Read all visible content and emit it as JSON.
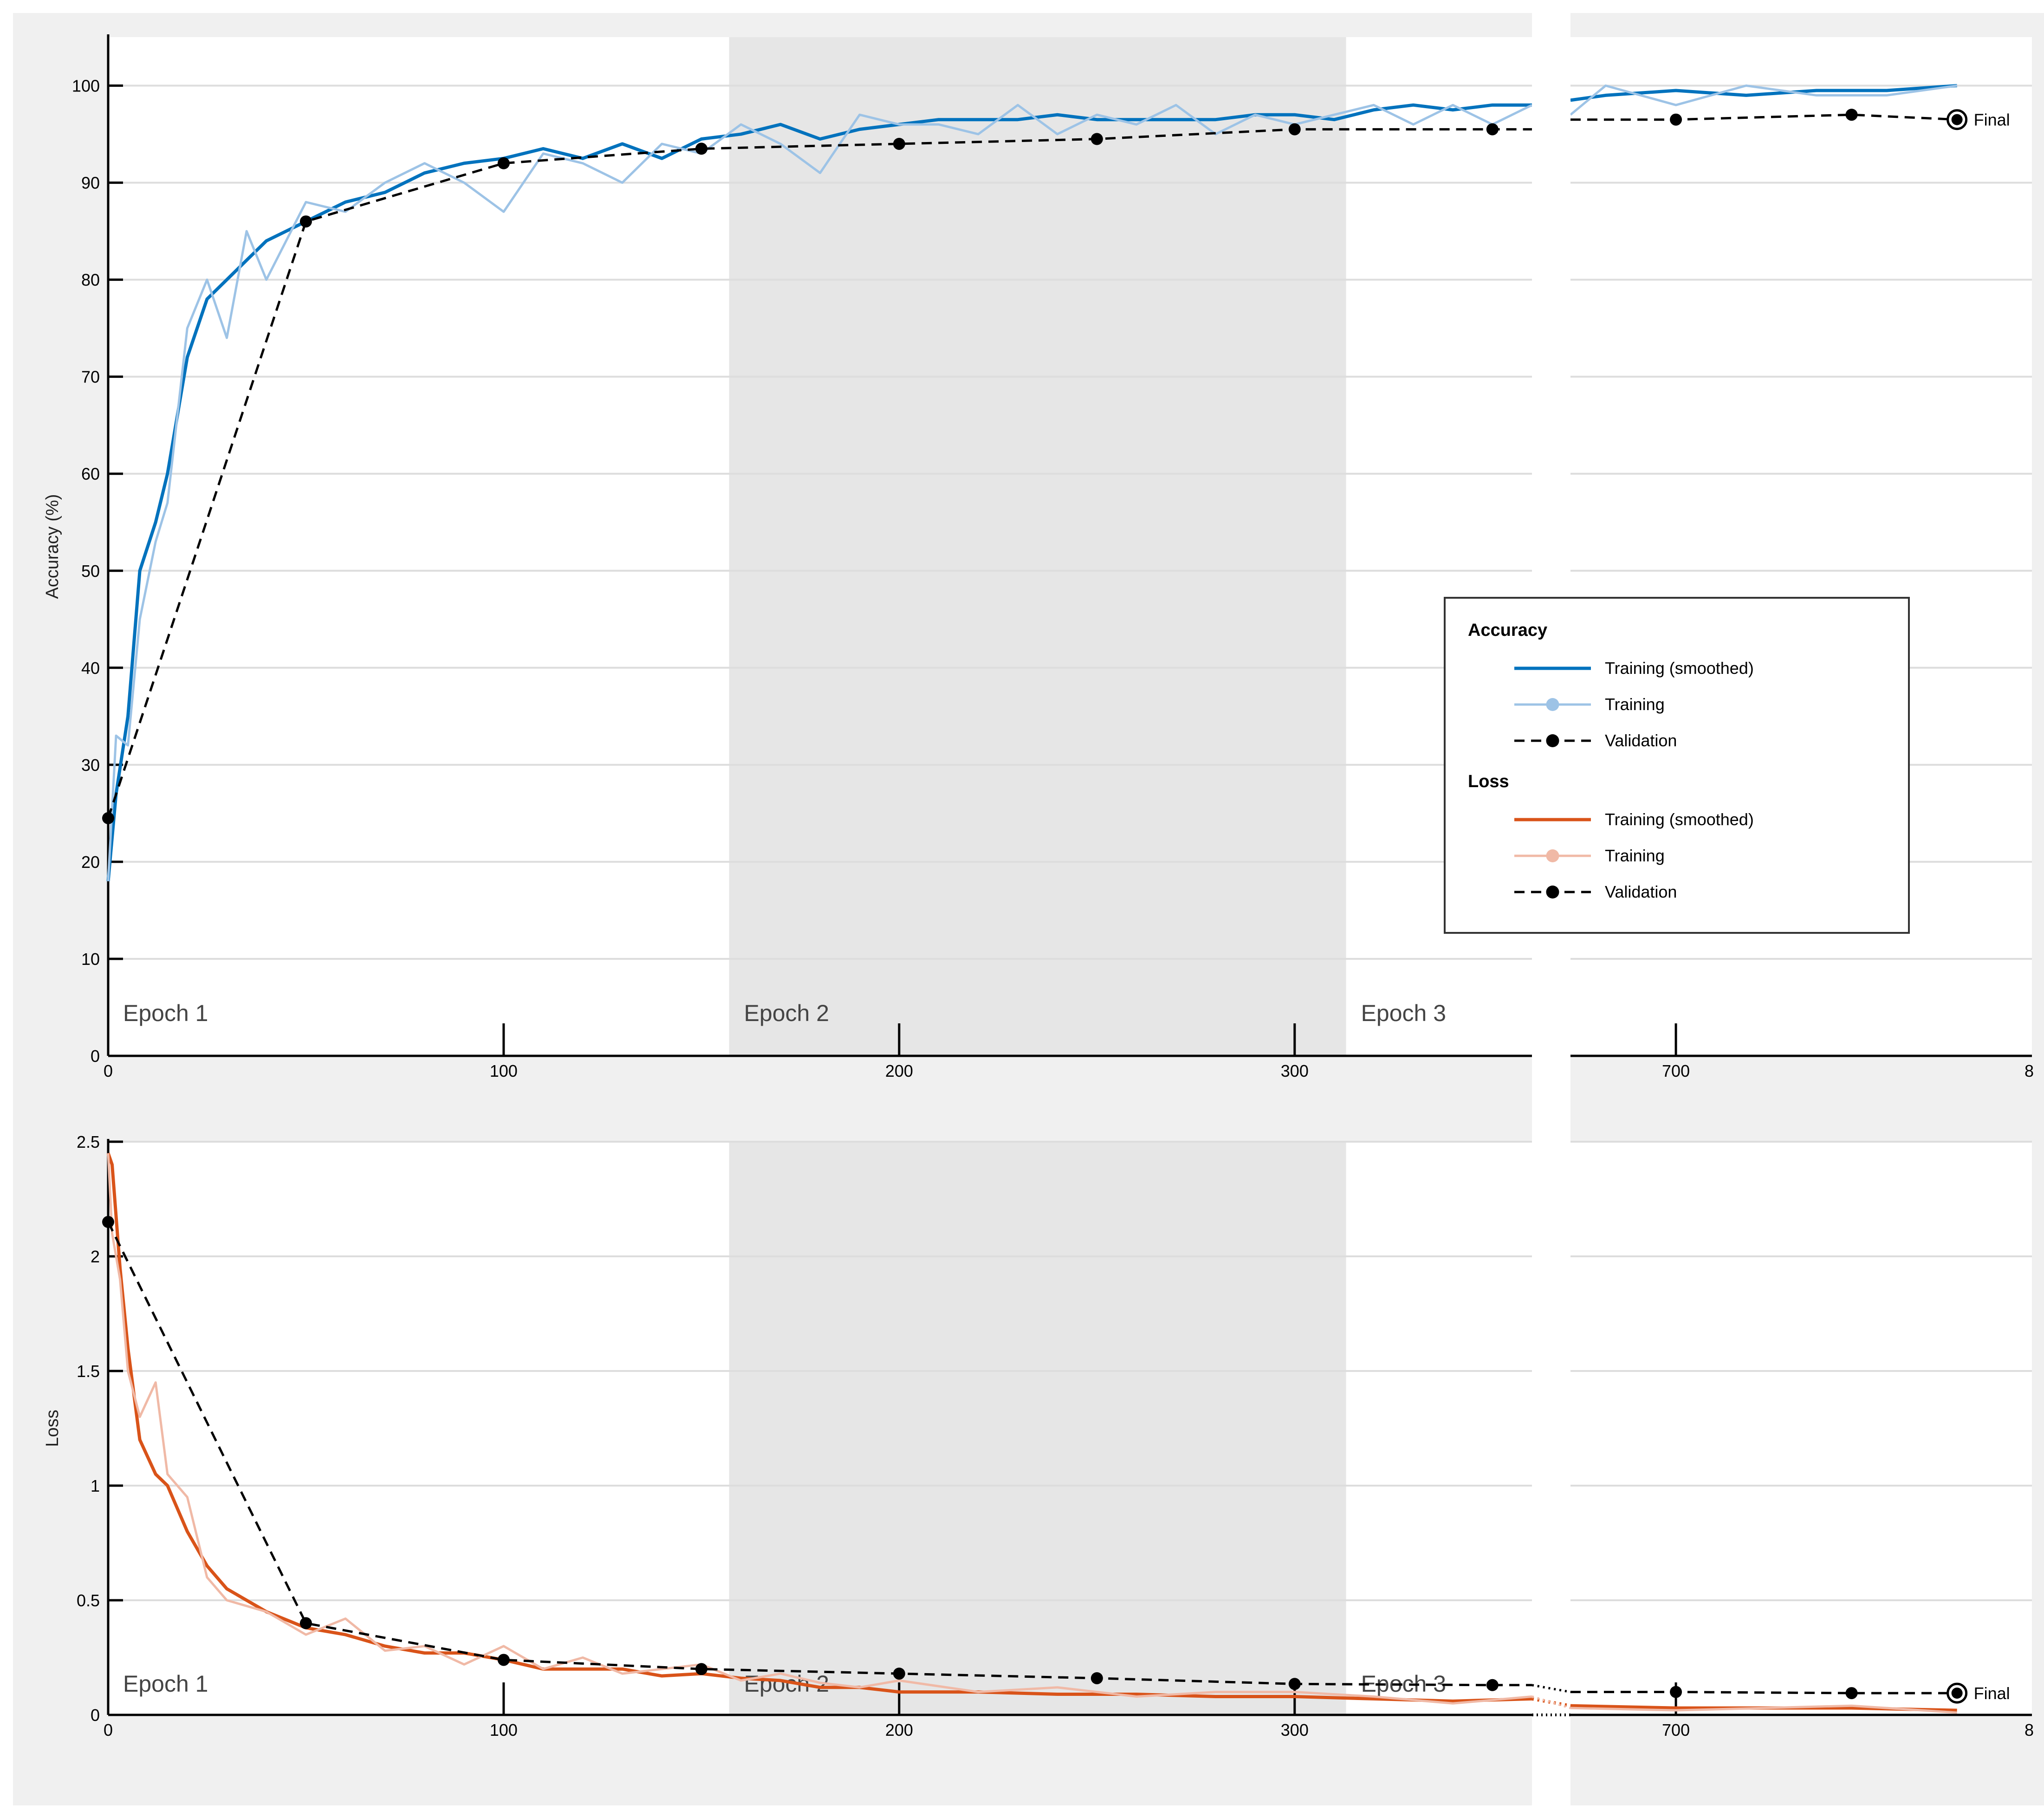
{
  "colors": {
    "acc_smooth": "#0072BD",
    "acc_raw": "#9DC3E6",
    "loss_smooth": "#D95319",
    "loss_raw": "#F0B9A6",
    "validation": "#000000",
    "panel_bg": "#F0F0F0",
    "epoch_band": "#E6E6E6",
    "grid": "#DDDDDD"
  },
  "chart_data": [
    {
      "type": "line",
      "panel": "accuracy",
      "title": "",
      "xlabel": "",
      "ylabel": "Accuracy (%)",
      "ylim": [
        0,
        105
      ],
      "yticks": [
        0,
        10,
        20,
        30,
        40,
        50,
        60,
        70,
        80,
        90,
        100
      ],
      "xticks": [
        0,
        100,
        200,
        300,
        700,
        "8"
      ],
      "x_break": [
        360,
        670
      ],
      "grid": true,
      "epochs": [
        {
          "label": "Epoch 1",
          "start": 0,
          "end": 157
        },
        {
          "label": "Epoch 2",
          "start": 157,
          "end": 313
        },
        {
          "label": "Epoch 3",
          "start": 313,
          "end": 780
        }
      ],
      "final_label": "Final",
      "series": [
        {
          "name": "Training (smoothed)",
          "style": "smooth",
          "x": [
            0,
            2,
            5,
            8,
            12,
            15,
            20,
            25,
            30,
            35,
            40,
            50,
            60,
            70,
            80,
            90,
            100,
            110,
            120,
            130,
            140,
            150,
            160,
            170,
            180,
            190,
            200,
            210,
            220,
            230,
            240,
            250,
            260,
            270,
            280,
            290,
            300,
            310,
            320,
            330,
            340,
            350,
            360,
            670,
            680,
            700,
            720,
            740,
            760,
            780
          ],
          "y": [
            18,
            27,
            35,
            50,
            55,
            60,
            72,
            78,
            80,
            82,
            84,
            86,
            88,
            89,
            91,
            92,
            92.5,
            93.5,
            92.5,
            94,
            92.5,
            94.5,
            95,
            96,
            94.5,
            95.5,
            96,
            96.5,
            96.5,
            96.5,
            97,
            96.5,
            96.5,
            96.5,
            96.5,
            97,
            97,
            96.5,
            97.5,
            98,
            97.5,
            98,
            98,
            98.5,
            99,
            99.5,
            99,
            99.5,
            99.5,
            100
          ]
        },
        {
          "name": "Training",
          "style": "raw",
          "x": [
            0,
            2,
            5,
            8,
            12,
            15,
            20,
            25,
            30,
            35,
            40,
            50,
            60,
            70,
            80,
            90,
            100,
            110,
            120,
            130,
            140,
            150,
            160,
            170,
            180,
            190,
            200,
            210,
            220,
            230,
            240,
            250,
            260,
            270,
            280,
            290,
            300,
            310,
            320,
            330,
            340,
            350,
            360,
            670,
            680,
            700,
            720,
            740,
            760,
            780
          ],
          "y": [
            18,
            33,
            32,
            45,
            53,
            57,
            75,
            80,
            74,
            85,
            80,
            88,
            87,
            90,
            92,
            90,
            87,
            93,
            92,
            90,
            94,
            93,
            96,
            94,
            91,
            97,
            96,
            96,
            95,
            98,
            95,
            97,
            96,
            98,
            95,
            97,
            96,
            97,
            98,
            96,
            98,
            96,
            98,
            97,
            100,
            98,
            100,
            99,
            99,
            100
          ]
        },
        {
          "name": "Validation",
          "style": "validation",
          "x": [
            0,
            50,
            100,
            150,
            200,
            250,
            300,
            350,
            360,
            670,
            700,
            750,
            780
          ],
          "y": [
            24.5,
            86,
            92,
            93.5,
            94,
            94.5,
            95.5,
            95.5,
            95.5,
            96.5,
            96.5,
            97,
            96.5
          ],
          "markers": [
            0,
            50,
            100,
            150,
            200,
            250,
            300,
            350,
            700,
            750,
            780
          ]
        }
      ],
      "legend": {
        "position": "right",
        "groups": [
          {
            "title": "Accuracy",
            "items": [
              {
                "label": "Training (smoothed)",
                "style": "smooth"
              },
              {
                "label": "Training",
                "style": "raw"
              },
              {
                "label": "Validation",
                "style": "validation"
              }
            ]
          },
          {
            "title": "Loss",
            "items": [
              {
                "label": "Training (smoothed)",
                "style": "smooth"
              },
              {
                "label": "Training",
                "style": "raw"
              },
              {
                "label": "Validation",
                "style": "validation"
              }
            ]
          }
        ]
      }
    },
    {
      "type": "line",
      "panel": "loss",
      "title": "",
      "xlabel": "",
      "ylabel": "Loss",
      "ylim": [
        0,
        2.5
      ],
      "yticks": [
        0,
        0.5,
        1,
        1.5,
        2,
        2.5
      ],
      "ytick_labels": [
        "0",
        "0.5",
        "1",
        "1.5",
        "2",
        "2.5"
      ],
      "xticks": [
        0,
        100,
        200,
        300,
        700,
        "8"
      ],
      "x_break": [
        360,
        670
      ],
      "grid": true,
      "epochs": [
        {
          "label": "Epoch 1",
          "start": 0,
          "end": 157
        },
        {
          "label": "Epoch 2",
          "start": 157,
          "end": 313
        },
        {
          "label": "Epoch 3",
          "start": 313,
          "end": 780
        }
      ],
      "final_label": "Final",
      "series": [
        {
          "name": "Training (smoothed)",
          "style": "smooth",
          "x": [
            0,
            1,
            3,
            5,
            8,
            12,
            15,
            20,
            25,
            30,
            40,
            50,
            60,
            70,
            80,
            90,
            100,
            110,
            120,
            130,
            140,
            150,
            160,
            170,
            180,
            190,
            200,
            220,
            240,
            260,
            280,
            300,
            320,
            340,
            360,
            670,
            700,
            750,
            780
          ],
          "y": [
            2.45,
            2.4,
            1.95,
            1.6,
            1.2,
            1.05,
            1.0,
            0.8,
            0.65,
            0.55,
            0.45,
            0.38,
            0.35,
            0.3,
            0.27,
            0.27,
            0.24,
            0.2,
            0.2,
            0.2,
            0.17,
            0.18,
            0.16,
            0.15,
            0.12,
            0.12,
            0.1,
            0.1,
            0.09,
            0.09,
            0.08,
            0.08,
            0.07,
            0.06,
            0.07,
            0.04,
            0.03,
            0.03,
            0.02
          ]
        },
        {
          "name": "Training",
          "style": "raw",
          "x": [
            0,
            1,
            3,
            5,
            8,
            12,
            15,
            20,
            25,
            30,
            40,
            50,
            60,
            70,
            80,
            90,
            100,
            110,
            120,
            130,
            140,
            150,
            160,
            170,
            180,
            190,
            200,
            220,
            240,
            260,
            280,
            300,
            320,
            340,
            360,
            670,
            700,
            750,
            780
          ],
          "y": [
            2.45,
            2.1,
            1.9,
            1.5,
            1.3,
            1.45,
            1.05,
            0.95,
            0.6,
            0.5,
            0.45,
            0.35,
            0.42,
            0.28,
            0.3,
            0.22,
            0.3,
            0.2,
            0.25,
            0.18,
            0.2,
            0.22,
            0.15,
            0.18,
            0.14,
            0.12,
            0.15,
            0.1,
            0.12,
            0.08,
            0.1,
            0.1,
            0.08,
            0.05,
            0.08,
            0.03,
            0.02,
            0.04,
            0.01
          ]
        },
        {
          "name": "Validation",
          "style": "validation",
          "x": [
            0,
            50,
            100,
            150,
            200,
            250,
            300,
            350,
            360,
            670,
            700,
            750,
            780
          ],
          "y": [
            2.15,
            0.4,
            0.24,
            0.2,
            0.18,
            0.16,
            0.135,
            0.13,
            0.13,
            0.1,
            0.1,
            0.095,
            0.095
          ],
          "markers": [
            0,
            50,
            100,
            150,
            200,
            250,
            300,
            350,
            700,
            750,
            780
          ]
        }
      ]
    }
  ]
}
